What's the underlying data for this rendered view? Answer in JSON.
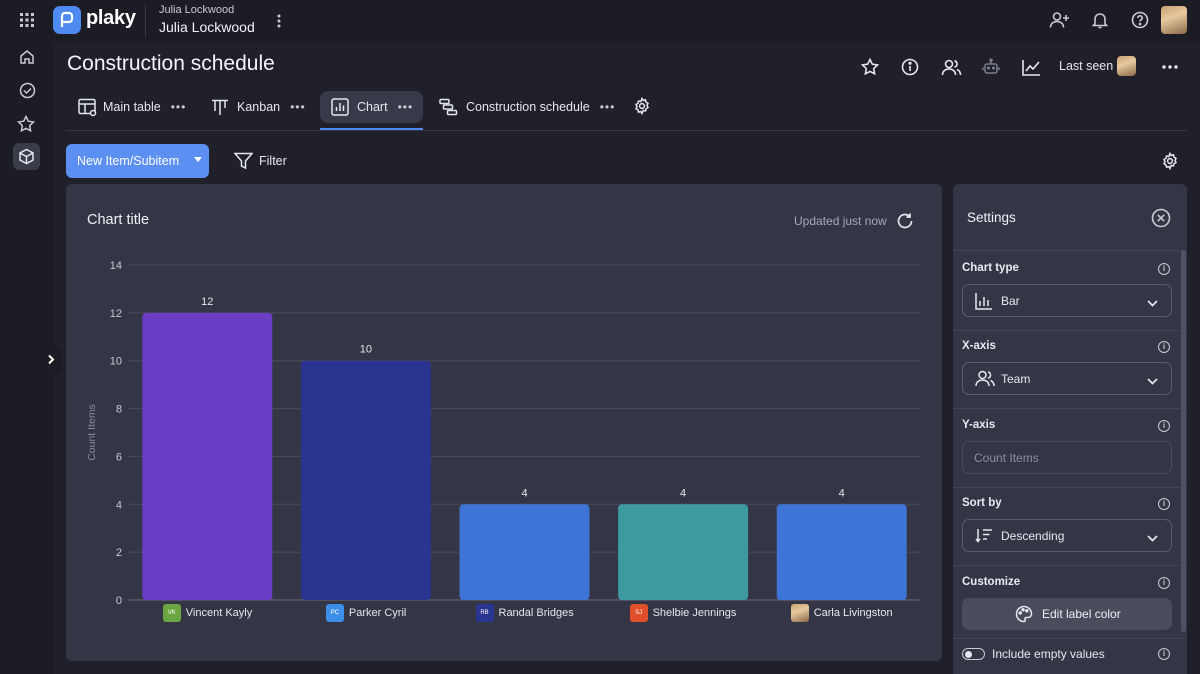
{
  "app": {
    "brand": "plaky",
    "workspace_owner": "Julia Lockwood",
    "workspace_name": "Julia Lockwood"
  },
  "board": {
    "title": "Construction schedule",
    "last_seen_label": "Last seen"
  },
  "tabs": [
    {
      "label": "Main table"
    },
    {
      "label": "Kanban"
    },
    {
      "label": "Chart"
    },
    {
      "label": "Construction schedule"
    }
  ],
  "toolbar": {
    "new_item_label": "New Item/Subitem",
    "filter_label": "Filter"
  },
  "chart_panel": {
    "title": "Chart title",
    "updated": "Updated just now"
  },
  "chart_data": {
    "type": "bar",
    "categories": [
      "Vincent Kayly",
      "Parker Cyril",
      "Randal Bridges",
      "Shelbie Jennings",
      "Carla Livingston"
    ],
    "values": [
      12,
      10,
      4,
      4,
      4
    ],
    "colors": [
      "#6a3dc4",
      "#2a3591",
      "#3d74d6",
      "#3d9aa0",
      "#3d74d6"
    ],
    "badges": [
      {
        "initials": "VK",
        "color": "#6ba642"
      },
      {
        "initials": "PC",
        "color": "#3d8ee8"
      },
      {
        "initials": "RB",
        "color": "#2a3591"
      },
      {
        "initials": "SJ",
        "color": "#e04e2a"
      },
      {
        "initials": "",
        "color": "#c9a070"
      }
    ],
    "ylabel": "Count Items",
    "xlabel": "",
    "ylim": [
      0,
      14
    ],
    "yticks": [
      0,
      2,
      4,
      6,
      8,
      10,
      12,
      14
    ],
    "grid": true
  },
  "settings": {
    "title": "Settings",
    "chart_type_label": "Chart type",
    "chart_type_value": "Bar",
    "x_axis_label": "X-axis",
    "x_axis_value": "Team",
    "y_axis_label": "Y-axis",
    "y_axis_placeholder": "Count Items",
    "sort_by_label": "Sort by",
    "sort_by_value": "Descending",
    "customize_label": "Customize",
    "edit_label_color": "Edit label color",
    "include_empty": "Include empty values"
  }
}
